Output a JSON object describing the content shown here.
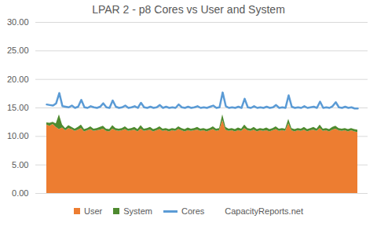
{
  "chart_data": {
    "type": "line",
    "title": "LPAR 2 - p8 Cores vs User and System",
    "stacked": true,
    "grid": true,
    "legend": "bottom",
    "tick_labels": "y",
    "annotations": [
      "CapacityReports.net"
    ],
    "categories": [
      null,
      null,
      null,
      null,
      null,
      null,
      null,
      null,
      null,
      null,
      null,
      null,
      null,
      null,
      null,
      null,
      null,
      null,
      null,
      null,
      null,
      null,
      null,
      null,
      null,
      null,
      null,
      null,
      null,
      null,
      null,
      null,
      null,
      null,
      null,
      null,
      null,
      null,
      null,
      null,
      null,
      null,
      null,
      null,
      null,
      null,
      null,
      null,
      null,
      null,
      null,
      null,
      null,
      null,
      null,
      null,
      null,
      null,
      null,
      null,
      null,
      null,
      null,
      null,
      null,
      null,
      null,
      null,
      null,
      null,
      null,
      null,
      null,
      null,
      null,
      null,
      null,
      null,
      null,
      null,
      null,
      null,
      null,
      null,
      null,
      null,
      null,
      null,
      null,
      null,
      null,
      null,
      null,
      null,
      null,
      null,
      null,
      null,
      null,
      null
    ],
    "ylim": [
      0,
      30
    ],
    "yticks": [
      {
        "value": 0,
        "label": "0.00"
      },
      {
        "value": 5,
        "label": "5.00"
      },
      {
        "value": 10,
        "label": "10.00"
      },
      {
        "value": 15,
        "label": "15.00"
      },
      {
        "value": 20,
        "label": "20.00"
      },
      {
        "value": 25,
        "label": "25.00"
      },
      {
        "value": 30,
        "label": "30.00"
      }
    ],
    "series": [
      {
        "name": "User",
        "type": "area",
        "color": "#ed7d31",
        "values": [
          12.0,
          11.8,
          12.1,
          11.6,
          11.2,
          11.5,
          11.0,
          11.4,
          11.2,
          10.9,
          11.1,
          11.4,
          10.8,
          11.0,
          11.2,
          10.9,
          11.0,
          11.1,
          11.3,
          10.9,
          10.8,
          11.3,
          11.0,
          10.9,
          11.0,
          11.2,
          10.9,
          11.0,
          11.1,
          10.8,
          11.3,
          10.9,
          11.0,
          11.1,
          10.8,
          11.0,
          11.2,
          10.9,
          11.0,
          10.8,
          11.0,
          10.9,
          11.2,
          11.0,
          10.8,
          11.0,
          10.9,
          11.0,
          11.1,
          10.9,
          11.0,
          10.8,
          11.0,
          11.2,
          10.9,
          11.0,
          12.8,
          11.1,
          10.9,
          11.0,
          10.8,
          11.0,
          10.9,
          11.4,
          11.0,
          10.9,
          11.1,
          10.8,
          11.0,
          10.9,
          11.0,
          10.8,
          11.0,
          11.2,
          10.9,
          11.0,
          10.9,
          12.2,
          11.0,
          10.8,
          11.0,
          10.9,
          11.1,
          10.8,
          11.0,
          11.1,
          10.9,
          11.4,
          10.9,
          11.0,
          10.8,
          11.1,
          11.3,
          11.0,
          10.9,
          11.0,
          10.8,
          11.0,
          10.8,
          10.7
        ]
      },
      {
        "name": "System",
        "type": "area",
        "color": "#4e8a2f",
        "values": [
          0.4,
          0.5,
          0.4,
          0.6,
          2.6,
          0.5,
          0.4,
          0.5,
          0.4,
          0.4,
          0.5,
          0.6,
          0.4,
          0.4,
          0.5,
          0.4,
          0.4,
          0.5,
          0.5,
          0.4,
          0.4,
          0.6,
          0.4,
          0.4,
          0.4,
          0.5,
          0.4,
          0.4,
          0.5,
          0.4,
          0.6,
          0.4,
          0.4,
          0.5,
          0.4,
          0.4,
          0.5,
          0.4,
          0.4,
          0.4,
          0.4,
          0.4,
          0.5,
          0.4,
          0.4,
          0.5,
          0.4,
          0.4,
          0.5,
          0.4,
          0.4,
          0.4,
          0.4,
          0.5,
          0.4,
          0.4,
          1.0,
          0.5,
          0.4,
          0.4,
          0.4,
          0.5,
          0.4,
          0.6,
          0.4,
          0.4,
          0.5,
          0.4,
          0.4,
          0.4,
          0.5,
          0.4,
          0.4,
          0.5,
          0.4,
          0.4,
          0.4,
          0.8,
          0.4,
          0.4,
          0.4,
          0.4,
          0.5,
          0.4,
          0.4,
          0.5,
          0.4,
          0.6,
          0.4,
          0.4,
          0.4,
          0.5,
          0.5,
          0.4,
          0.4,
          0.4,
          0.4,
          0.4,
          0.4,
          0.4
        ]
      },
      {
        "name": "Cores",
        "type": "line",
        "color": "#5b9bd5",
        "values": [
          15.6,
          15.5,
          15.4,
          15.8,
          17.6,
          15.3,
          15.2,
          15.1,
          15.4,
          15.0,
          15.2,
          16.4,
          15.1,
          15.0,
          15.3,
          15.1,
          15.0,
          15.2,
          15.8,
          15.1,
          15.0,
          16.3,
          15.2,
          15.0,
          15.1,
          15.4,
          15.0,
          15.1,
          15.3,
          15.0,
          15.9,
          15.1,
          15.0,
          15.2,
          15.0,
          15.1,
          15.5,
          15.0,
          15.2,
          15.0,
          15.1,
          15.0,
          15.6,
          15.1,
          15.0,
          15.2,
          15.0,
          15.1,
          15.3,
          15.0,
          15.1,
          15.0,
          15.2,
          15.4,
          15.0,
          15.1,
          17.7,
          15.3,
          15.0,
          15.1,
          15.0,
          15.2,
          15.0,
          16.6,
          15.1,
          15.0,
          15.3,
          15.0,
          15.1,
          15.0,
          15.2,
          15.0,
          15.1,
          15.5,
          15.0,
          15.1,
          15.0,
          17.2,
          15.2,
          15.0,
          15.1,
          15.0,
          15.3,
          15.0,
          15.1,
          15.2,
          15.0,
          16.1,
          15.0,
          15.1,
          15.0,
          15.3,
          16.0,
          15.1,
          15.0,
          15.2,
          15.0,
          15.1,
          14.9,
          14.9
        ]
      }
    ]
  }
}
